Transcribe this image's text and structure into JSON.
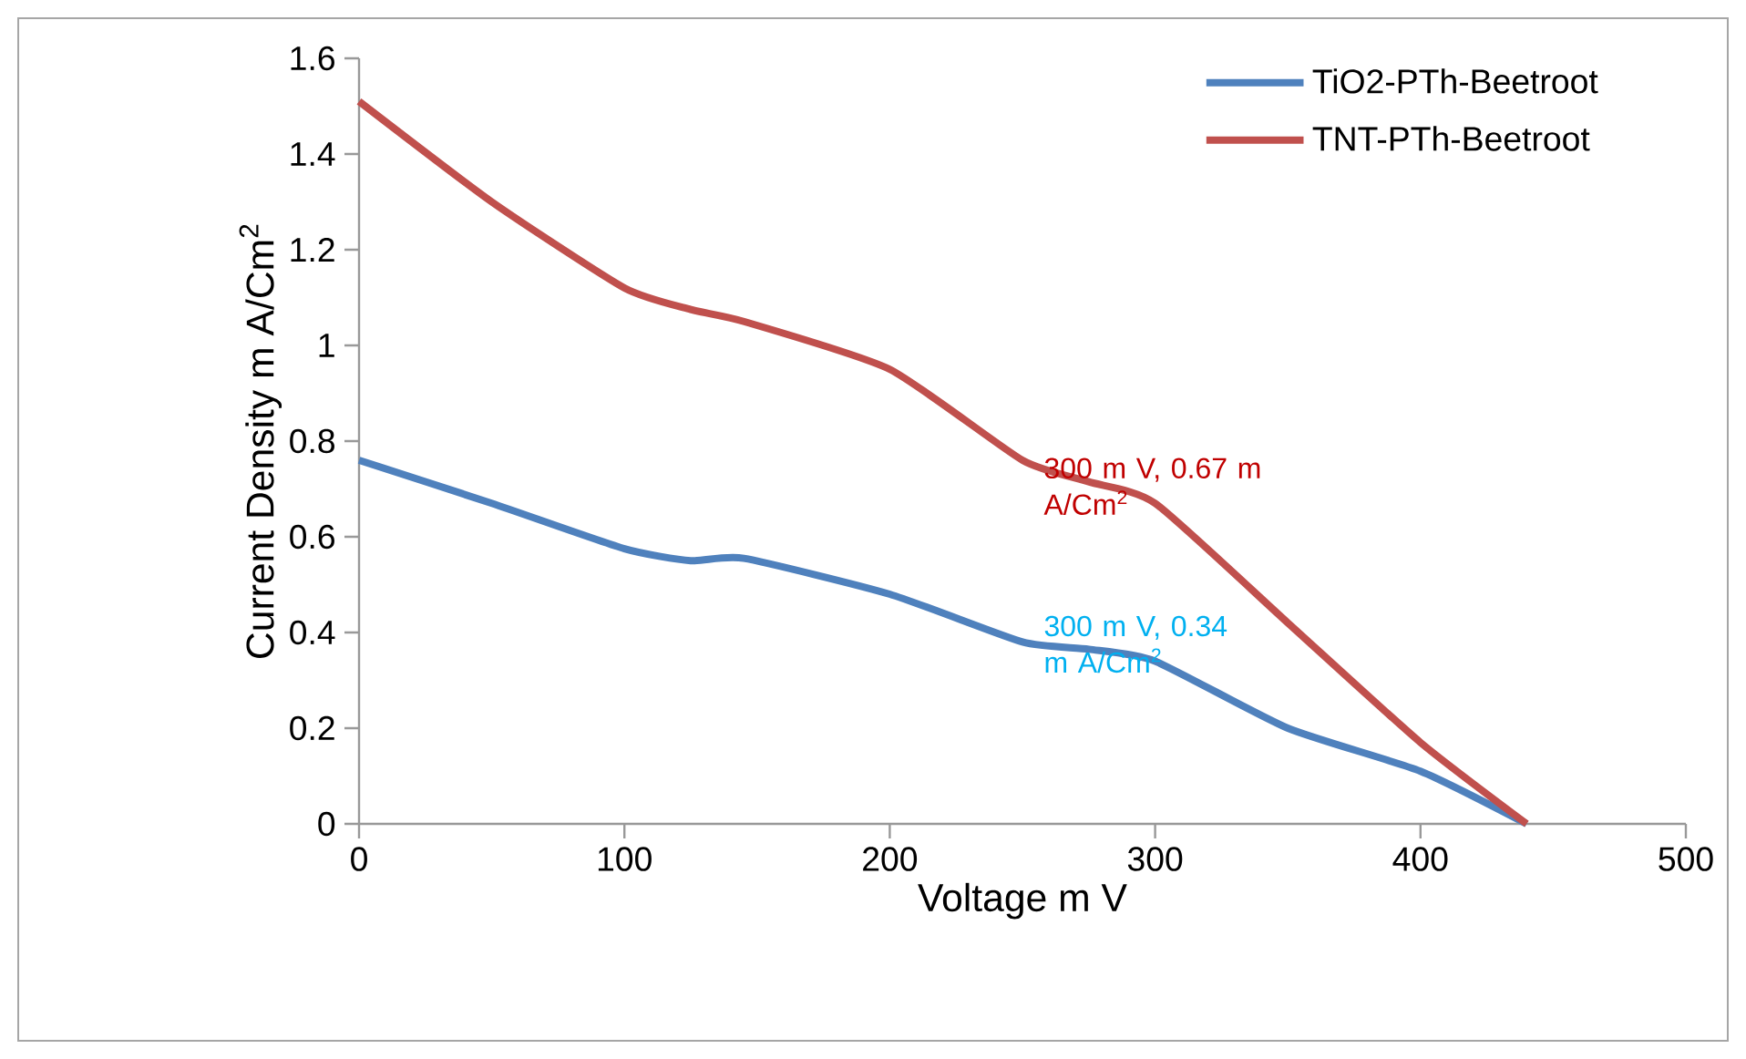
{
  "chart_data": {
    "type": "line",
    "xlabel": "Voltage m V",
    "ylabel": "Current Density m A/Cm$^{2}$",
    "xlim": [
      0,
      500
    ],
    "xticks": [
      0,
      100,
      200,
      300,
      400,
      500
    ],
    "ylim": [
      0,
      1.6
    ],
    "yticks": [
      0,
      0.2,
      0.4,
      0.6,
      0.8,
      1,
      1.2,
      1.4,
      1.6
    ],
    "grid": false,
    "legend": "top right",
    "marker": "none",
    "line_style": "solid",
    "x": [
      0,
      50,
      100,
      125,
      145,
      200,
      250,
      275,
      300,
      350,
      400,
      440
    ],
    "series": [
      {
        "name": "TiO2-PTh-Beetroot",
        "color": "#4f81bd",
        "values": [
          0.76,
          0.67,
          0.575,
          0.55,
          0.555,
          0.48,
          0.38,
          0.365,
          0.34,
          0.2,
          0.11,
          0
        ]
      },
      {
        "name": "TNT-PTh-Beetroot",
        "color": "#c0504d",
        "values": [
          1.51,
          1.3,
          1.12,
          1.075,
          1.05,
          0.95,
          0.76,
          0.715,
          0.67,
          0.42,
          0.17,
          0
        ]
      }
    ],
    "annotations": [
      {
        "text": "300 m V, 0.67 m A/Cm$^{2}$",
        "x": 300,
        "y": 0.67
      },
      {
        "text": "300 m V, 0.34 m A/Cm$^{2}$",
        "x": 300,
        "y": 0.34
      }
    ]
  }
}
